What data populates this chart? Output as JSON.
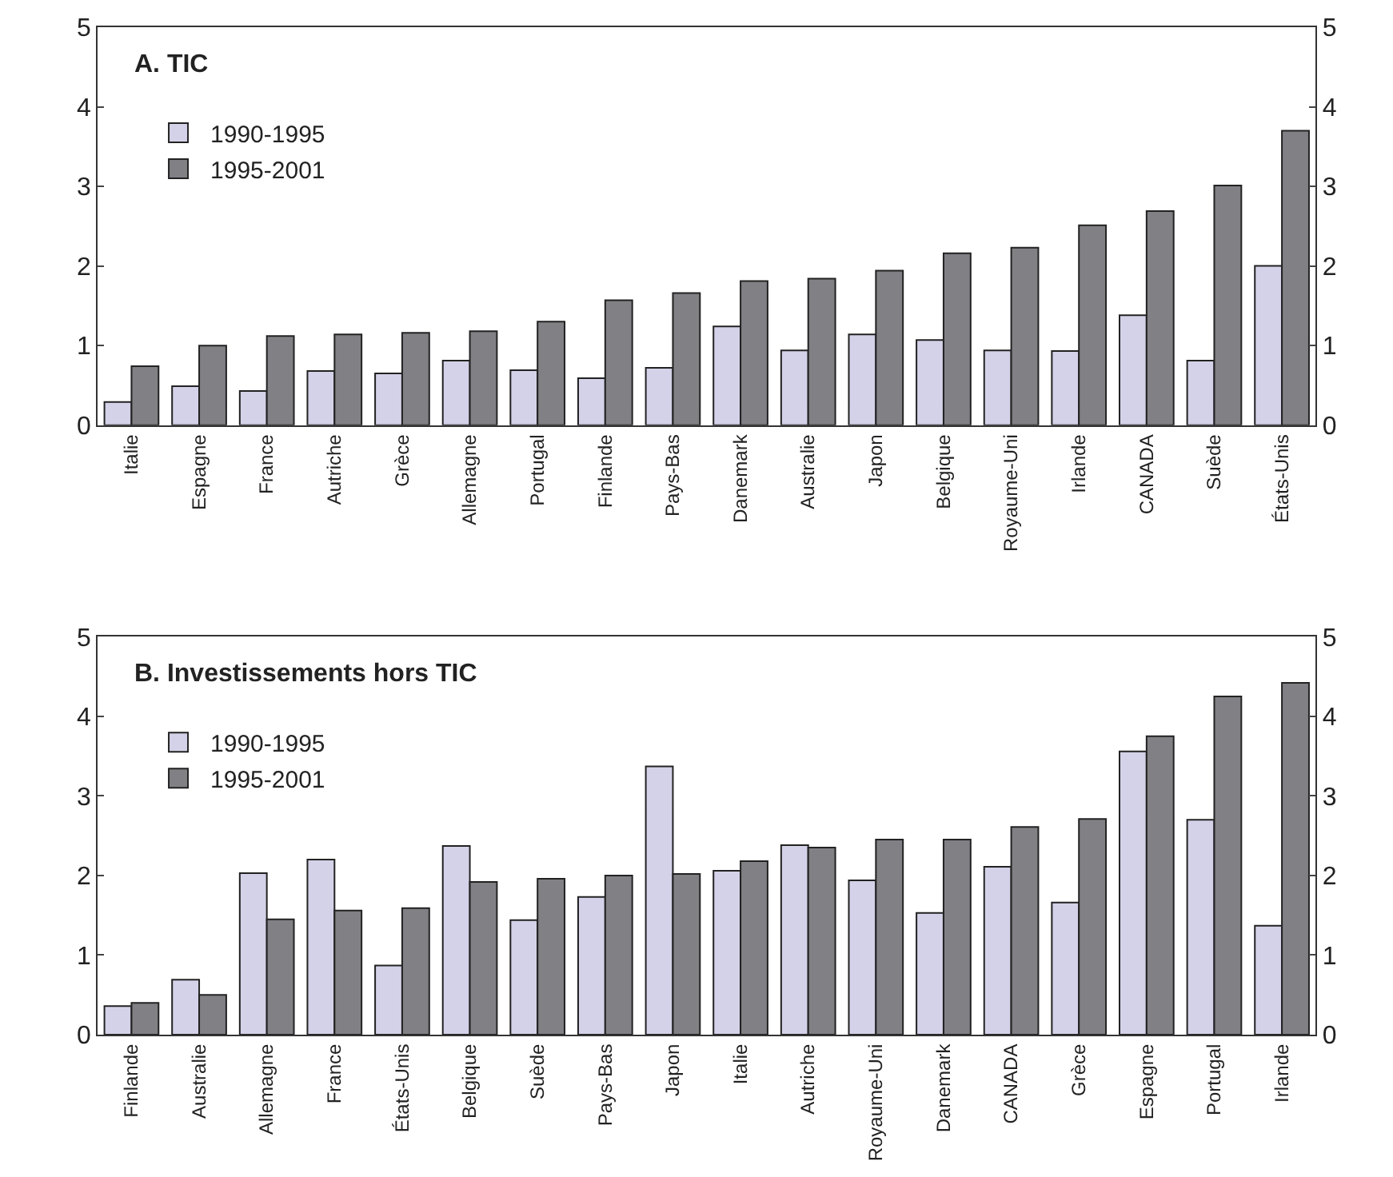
{
  "chart_data": [
    {
      "type": "bar",
      "title": "A. TIC",
      "categories": [
        "Italie",
        "Espagne",
        "France",
        "Autriche",
        "Grèce",
        "Allemagne",
        "Portugal",
        "Finlande",
        "Pays-Bas",
        "Danemark",
        "Australie",
        "Japon",
        "Belgique",
        "Royaume-Uni",
        "Irlande",
        "CANADA",
        "Suède",
        "États-Unis"
      ],
      "series": [
        {
          "name": "1990-1995",
          "color": "#d4d2e8",
          "values": [
            0.29,
            0.49,
            0.43,
            0.68,
            0.65,
            0.81,
            0.69,
            0.59,
            0.72,
            1.24,
            0.94,
            1.14,
            1.07,
            0.94,
            0.93,
            1.38,
            0.81,
            2.0
          ]
        },
        {
          "name": "1995-2001",
          "color": "#808085",
          "values": [
            0.74,
            1.0,
            1.12,
            1.14,
            1.16,
            1.18,
            1.3,
            1.57,
            1.66,
            1.81,
            1.84,
            1.94,
            2.16,
            2.23,
            2.51,
            2.69,
            3.01,
            3.7
          ]
        }
      ],
      "ylim": [
        0,
        5
      ],
      "yticks": [
        0,
        1,
        2,
        3,
        4,
        5
      ],
      "y2lim": [
        0,
        5
      ],
      "y2ticks": [
        0,
        1,
        2,
        3,
        4,
        5
      ],
      "legend": "top left"
    },
    {
      "type": "bar",
      "title": "B. Investissements hors TIC",
      "categories": [
        "Finlande",
        "Australie",
        "Allemagne",
        "France",
        "États-Unis",
        "Belgique",
        "Suède",
        "Pays-Bas",
        "Japon",
        "Italie",
        "Autriche",
        "Royaume-Uni",
        "Danemark",
        "CANADA",
        "Grèce",
        "Espagne",
        "Portugal",
        "Irlande"
      ],
      "series": [
        {
          "name": "1990-1995",
          "color": "#d4d2e8",
          "values": [
            0.36,
            0.69,
            2.03,
            2.2,
            0.87,
            2.37,
            1.44,
            1.73,
            3.37,
            2.06,
            2.38,
            1.94,
            1.53,
            2.11,
            1.66,
            3.56,
            2.7,
            1.37
          ]
        },
        {
          "name": "1995-2001",
          "color": "#808085",
          "values": [
            0.4,
            0.5,
            1.45,
            1.56,
            1.59,
            1.92,
            1.96,
            2.0,
            2.02,
            2.18,
            2.35,
            2.45,
            2.45,
            2.61,
            2.71,
            3.75,
            4.25,
            4.42
          ]
        }
      ],
      "ylim": [
        0,
        5
      ],
      "yticks": [
        0,
        1,
        2,
        3,
        4,
        5
      ],
      "y2lim": [
        0,
        5
      ],
      "y2ticks": [
        0,
        1,
        2,
        3,
        4,
        5
      ],
      "legend": "top left"
    }
  ]
}
